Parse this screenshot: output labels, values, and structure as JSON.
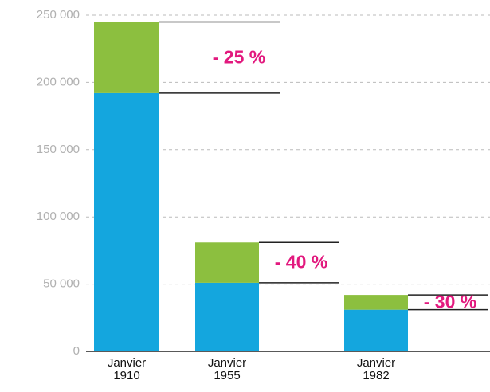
{
  "chart_data": {
    "type": "stacked_bar",
    "categories": [
      "Janvier 1910",
      "Janvier 1955",
      "Janvier 1982"
    ],
    "series": [
      {
        "color": "#14a6de",
        "values": [
          192000,
          51000,
          31000
        ]
      },
      {
        "color": "#8cbf3f",
        "values": [
          53000,
          30000,
          11000
        ]
      }
    ],
    "annotations": [
      "- 25 %",
      "- 40 %",
      "- 30 %"
    ],
    "annotation_color": "#e2197e",
    "ylim": [
      0,
      250000
    ],
    "yticks": [
      0,
      {
        "value": 50000,
        "label": "50 000"
      },
      {
        "value": 100000,
        "label": "100 000"
      },
      {
        "value": 150000,
        "label": "150 000"
      },
      {
        "value": 200000,
        "label": "200 000"
      },
      {
        "value": 250000,
        "label": "250 000"
      }
    ],
    "grid": true
  }
}
